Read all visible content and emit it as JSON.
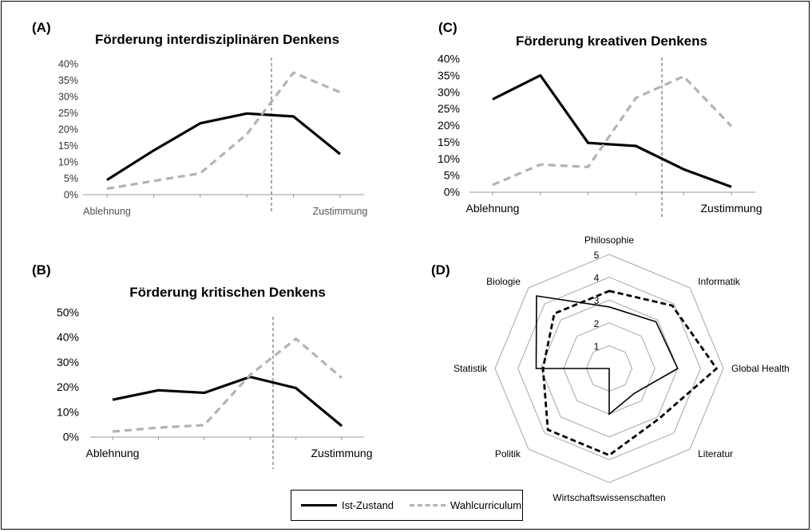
{
  "colors": {
    "ist": "#000000",
    "wahl": "#b3b3b3",
    "radar_grid": "#a6a6a6"
  },
  "legend": {
    "ist": "Ist-Zustand",
    "wahl": "Wahlcurriculum"
  },
  "chart_data": [
    {
      "panel": "(A)",
      "type": "line",
      "title": "Förderung interdisziplinären Denkens",
      "xlabel_left": "Ablehnung",
      "xlabel_right": "Zustimmung",
      "x": [
        1,
        2,
        3,
        4,
        5,
        6
      ],
      "ylim": [
        0,
        40
      ],
      "yticks": [
        "0%",
        "5%",
        "10%",
        "15%",
        "20%",
        "25%",
        "30%",
        "35%",
        "40%"
      ],
      "divider_at": 4.5,
      "series": [
        {
          "name": "Ist-Zustand",
          "values": [
            4.5,
            13.5,
            21.8,
            24.8,
            23.9,
            12.4
          ]
        },
        {
          "name": "Wahlcurriculum",
          "values": [
            1.8,
            4.2,
            6.5,
            18.5,
            37.3,
            31.3
          ]
        }
      ]
    },
    {
      "panel": "(B)",
      "type": "line",
      "title": "Förderung kritischen Denkens",
      "xlabel_left": "Ablehnung",
      "xlabel_right": "Zustimmung",
      "x": [
        1,
        2,
        3,
        4,
        5,
        6
      ],
      "ylim": [
        0,
        50
      ],
      "yticks": [
        "0%",
        "10%",
        "20%",
        "30%",
        "40%",
        "50%"
      ],
      "divider_at": 4.5,
      "series": [
        {
          "name": "Ist-Zustand",
          "values": [
            15,
            18.8,
            17.8,
            24.2,
            19.7,
            4.5
          ]
        },
        {
          "name": "Wahlcurriculum",
          "values": [
            2.2,
            3.8,
            4.8,
            25,
            39.5,
            23.8
          ]
        }
      ]
    },
    {
      "panel": "(C)",
      "type": "line",
      "title": "Förderung kreativen Denkens",
      "xlabel_left": "Ablehnung",
      "xlabel_right": "Zustimmung",
      "x": [
        1,
        2,
        3,
        4,
        5,
        6
      ],
      "ylim": [
        0,
        40
      ],
      "yticks": [
        "0%",
        "5%",
        "10%",
        "15%",
        "20%",
        "25%",
        "30%",
        "35%",
        "40%"
      ],
      "divider_at": 4.5,
      "series": [
        {
          "name": "Ist-Zustand",
          "values": [
            27.9,
            35.1,
            14.8,
            13.9,
            6.9,
            1.6
          ]
        },
        {
          "name": "Wahlcurriculum",
          "values": [
            2.2,
            8.3,
            7.6,
            28.3,
            34.8,
            19.8
          ]
        }
      ]
    },
    {
      "panel": "(D)",
      "type": "radar",
      "axes": [
        "Philosophie",
        "Informatik",
        "Global Health",
        "Literatur",
        "Wirtschaftswissenschaften",
        "Politik",
        "Statistik",
        "Biologie"
      ],
      "rlim": [
        0,
        5
      ],
      "rticks": [
        "1",
        "2",
        "3",
        "4",
        "5"
      ],
      "series": [
        {
          "name": "Ist-Zustand",
          "values": [
            2.7,
            2.9,
            3.0,
            1.55,
            2.0,
            0.0,
            3.2,
            4.5
          ]
        },
        {
          "name": "Wahlcurriculum",
          "values": [
            3.4,
            3.9,
            4.7,
            3.1,
            3.8,
            3.8,
            2.9,
            3.4
          ]
        }
      ]
    }
  ]
}
